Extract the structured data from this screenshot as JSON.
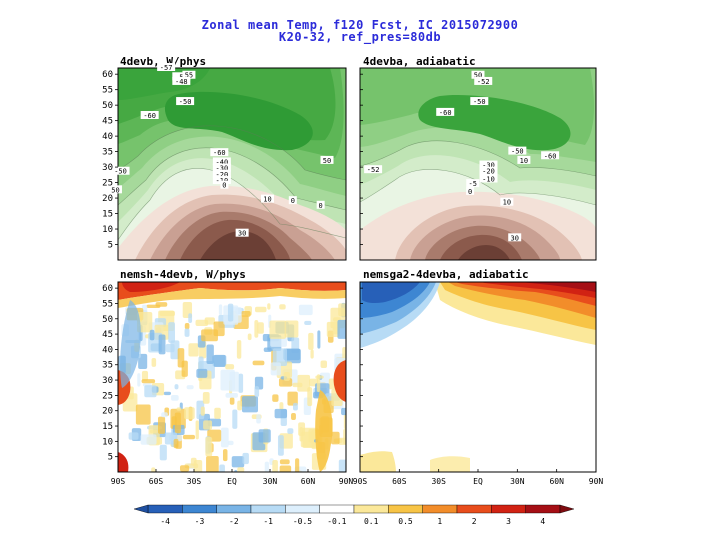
{
  "figure": {
    "title_line1": "Zonal mean Temp, f120 Fcst, IC 2015072900",
    "title_line2": "K20-32, ref_pres=80db"
  },
  "panels": [
    {
      "id": "p1",
      "title": "4devb, W/phys"
    },
    {
      "id": "p2",
      "title": "4devba, adiabatic"
    },
    {
      "id": "p3",
      "title": "nemsh-4devb, W/phys"
    },
    {
      "id": "p4",
      "title": "nemsga2-4devba, adiabatic"
    }
  ],
  "colors": {
    "title": "#2b2bd9",
    "green_light": "#e3f2dd",
    "green_dark": "#2e9e3a",
    "brown_dark": "#6b3f35",
    "brown_light": "#f1dcd2",
    "diff_scale": [
      "#2760b8",
      "#3d86d2",
      "#79b4e6",
      "#b7dbf5",
      "#ddeffc",
      "#ffffff",
      "#fbe89a",
      "#f7c446",
      "#f28d2a",
      "#e84d1c",
      "#d12213",
      "#a50f15"
    ]
  },
  "chart_data": [
    {
      "type": "heatmap",
      "panel": "p1",
      "field": "zonal mean temperature (contoured)",
      "x_range": [
        "90S",
        "90N"
      ],
      "y_range": [
        0,
        62
      ],
      "ytick_labels": [
        "5",
        "10",
        "15",
        "20",
        "25",
        "30",
        "35",
        "40",
        "45",
        "50",
        "55",
        "60"
      ],
      "contour_labels": [
        {
          "text": "-57",
          "x": -52,
          "y": 62
        },
        {
          "text": "-50",
          "x": -40,
          "y": 59
        },
        {
          "text": "55",
          "x": -34,
          "y": 59.5
        },
        {
          "text": "-48",
          "x": -40,
          "y": 57.5
        },
        {
          "text": "-50",
          "x": -37,
          "y": 51
        },
        {
          "text": "-60",
          "x": -65,
          "y": 46.5
        },
        {
          "text": "-60",
          "x": -10,
          "y": 34.5
        },
        {
          "text": "-40",
          "x": -8,
          "y": 31.5
        },
        {
          "text": "-30",
          "x": -8,
          "y": 29.5
        },
        {
          "text": "-20",
          "x": -8,
          "y": 27.5
        },
        {
          "text": "-10",
          "x": -8,
          "y": 25.5
        },
        {
          "text": "0",
          "x": -6,
          "y": 24
        },
        {
          "text": "50",
          "x": 75,
          "y": 32
        },
        {
          "text": "-50",
          "x": -88,
          "y": 28.5
        },
        {
          "text": "50",
          "x": -92,
          "y": 22.5
        },
        {
          "text": "10",
          "x": 28,
          "y": 19.5
        },
        {
          "text": "0",
          "x": 48,
          "y": 19
        },
        {
          "text": "0",
          "x": 70,
          "y": 17.5
        },
        {
          "text": "30",
          "x": 8,
          "y": 8.5
        }
      ]
    },
    {
      "type": "heatmap",
      "panel": "p2",
      "field": "zonal mean temperature (contoured)",
      "x_range": [
        "90S",
        "90N"
      ],
      "y_range": [
        0,
        62
      ],
      "contour_labels": [
        {
          "text": "50",
          "x": 0,
          "y": 59.5
        },
        {
          "text": "-52",
          "x": 4,
          "y": 57.5
        },
        {
          "text": "-50",
          "x": 1,
          "y": 51
        },
        {
          "text": "-60",
          "x": -25,
          "y": 47.5
        },
        {
          "text": "-50",
          "x": 30,
          "y": 35
        },
        {
          "text": "-60",
          "x": 55,
          "y": 33.5
        },
        {
          "text": "10",
          "x": 35,
          "y": 32
        },
        {
          "text": "-30",
          "x": 8,
          "y": 30.5
        },
        {
          "text": "-20",
          "x": 8,
          "y": 28.5
        },
        {
          "text": "-10",
          "x": 8,
          "y": 26
        },
        {
          "text": "-5",
          "x": -4,
          "y": 24.5
        },
        {
          "text": "0",
          "x": -6,
          "y": 22
        },
        {
          "text": "-52",
          "x": -80,
          "y": 29
        },
        {
          "text": "10",
          "x": 22,
          "y": 18.5
        },
        {
          "text": "30",
          "x": 28,
          "y": 7
        }
      ]
    },
    {
      "type": "heatmap",
      "panel": "p3",
      "field": "temperature difference",
      "ytick_labels": [
        "5",
        "10",
        "15",
        "20",
        "25",
        "30",
        "35",
        "40",
        "45",
        "50",
        "55",
        "60"
      ],
      "xtick_labels": [
        "90S",
        "60S",
        "30S",
        "EQ",
        "30N",
        "60N",
        "90N"
      ]
    },
    {
      "type": "heatmap",
      "panel": "p4",
      "field": "temperature difference",
      "xtick_labels": [
        "90S",
        "60S",
        "30S",
        "EQ",
        "30N",
        "60N",
        "90N"
      ]
    }
  ],
  "colorbar": {
    "labels": [
      "-4",
      "-3",
      "-2",
      "-1",
      "-0.5",
      "-0.1",
      "0.1",
      "0.5",
      "1",
      "2",
      "3",
      "4"
    ]
  }
}
